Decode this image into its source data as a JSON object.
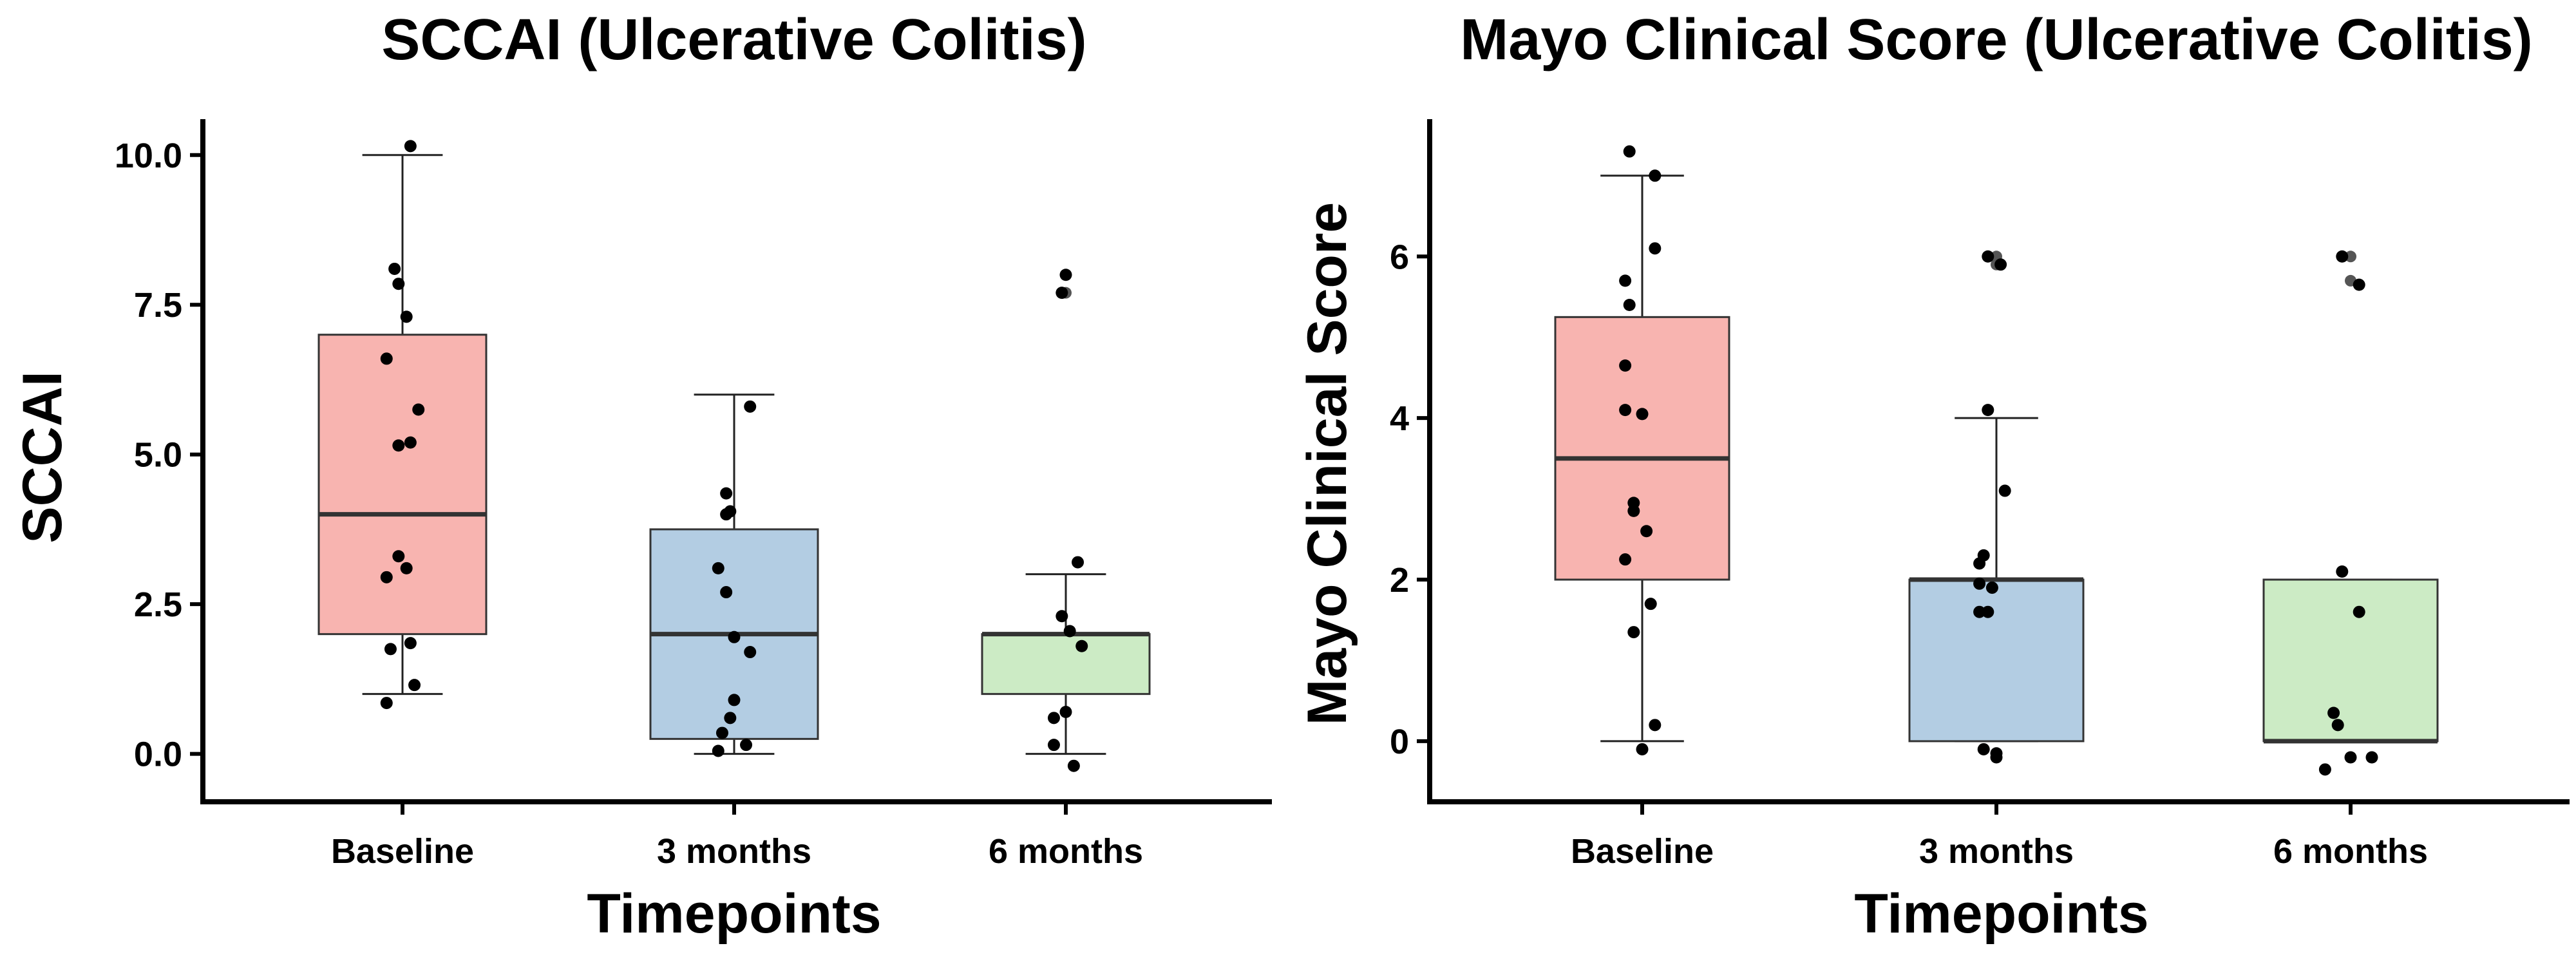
{
  "chart_data": [
    {
      "type": "box",
      "title": "SCCAI (Ulcerative Colitis)",
      "xlabel": "Timepoints",
      "ylabel": "SCCAI",
      "ylim": [
        -0.8,
        10.6
      ],
      "yticks": [
        0.0,
        2.5,
        5.0,
        7.5,
        10.0
      ],
      "ytick_labels": [
        "0.0",
        "2.5",
        "5.0",
        "7.5",
        "10.0"
      ],
      "categories": [
        "Baseline",
        "3 months",
        "6 months"
      ],
      "fill_colors": [
        "#F8B4B0",
        "#B3CDE3",
        "#CCEBC5"
      ],
      "boxes": [
        {
          "category": "Baseline",
          "whisker_low": 1.0,
          "q1": 2.0,
          "median": 4.0,
          "q3": 7.0,
          "whisker_high": 10.0,
          "outliers": []
        },
        {
          "category": "3 months",
          "whisker_low": 0.0,
          "q1": 0.25,
          "median": 2.0,
          "q3": 3.75,
          "whisker_high": 6.0,
          "outliers": []
        },
        {
          "category": "6 months",
          "whisker_low": 0.0,
          "q1": 1.0,
          "median": 2.0,
          "q3": 2.0,
          "whisker_high": 3.0,
          "outliers": [
            7.7,
            8.0
          ]
        }
      ],
      "points": [
        {
          "category": "Baseline",
          "y": 10.15,
          "jitter": 0.02
        },
        {
          "category": "Baseline",
          "y": 8.1,
          "jitter": -0.02
        },
        {
          "category": "Baseline",
          "y": 7.85,
          "jitter": -0.01
        },
        {
          "category": "Baseline",
          "y": 7.3,
          "jitter": 0.01
        },
        {
          "category": "Baseline",
          "y": 6.6,
          "jitter": -0.04
        },
        {
          "category": "Baseline",
          "y": 5.75,
          "jitter": 0.04
        },
        {
          "category": "Baseline",
          "y": 5.2,
          "jitter": 0.02
        },
        {
          "category": "Baseline",
          "y": 5.15,
          "jitter": -0.01
        },
        {
          "category": "Baseline",
          "y": 3.3,
          "jitter": -0.01
        },
        {
          "category": "Baseline",
          "y": 3.1,
          "jitter": 0.01
        },
        {
          "category": "Baseline",
          "y": 2.95,
          "jitter": -0.04
        },
        {
          "category": "Baseline",
          "y": 1.85,
          "jitter": 0.02
        },
        {
          "category": "Baseline",
          "y": 1.75,
          "jitter": -0.03
        },
        {
          "category": "Baseline",
          "y": 1.15,
          "jitter": 0.03
        },
        {
          "category": "Baseline",
          "y": 0.85,
          "jitter": -0.04
        },
        {
          "category": "3 months",
          "y": 5.8,
          "jitter": 0.04
        },
        {
          "category": "3 months",
          "y": 4.35,
          "jitter": -0.02
        },
        {
          "category": "3 months",
          "y": 4.05,
          "jitter": -0.01
        },
        {
          "category": "3 months",
          "y": 4.0,
          "jitter": -0.02
        },
        {
          "category": "3 months",
          "y": 3.1,
          "jitter": -0.04
        },
        {
          "category": "3 months",
          "y": 2.7,
          "jitter": -0.02
        },
        {
          "category": "3 months",
          "y": 1.95,
          "jitter": 0.0
        },
        {
          "category": "3 months",
          "y": 1.7,
          "jitter": 0.04
        },
        {
          "category": "3 months",
          "y": 0.9,
          "jitter": 0.0
        },
        {
          "category": "3 months",
          "y": 0.6,
          "jitter": -0.01
        },
        {
          "category": "3 months",
          "y": 0.35,
          "jitter": -0.03
        },
        {
          "category": "3 months",
          "y": 0.15,
          "jitter": 0.03
        },
        {
          "category": "3 months",
          "y": 0.05,
          "jitter": -0.04
        },
        {
          "category": "6 months",
          "y": 8.0,
          "jitter": 0.0
        },
        {
          "category": "6 months",
          "y": 7.7,
          "jitter": -0.01
        },
        {
          "category": "6 months",
          "y": 3.2,
          "jitter": 0.03
        },
        {
          "category": "6 months",
          "y": 2.3,
          "jitter": -0.01
        },
        {
          "category": "6 months",
          "y": 2.05,
          "jitter": 0.01
        },
        {
          "category": "6 months",
          "y": 1.8,
          "jitter": 0.04
        },
        {
          "category": "6 months",
          "y": 0.7,
          "jitter": 0.0
        },
        {
          "category": "6 months",
          "y": 0.6,
          "jitter": -0.03
        },
        {
          "category": "6 months",
          "y": 0.15,
          "jitter": -0.03
        },
        {
          "category": "6 months",
          "y": -0.2,
          "jitter": 0.02
        }
      ]
    },
    {
      "type": "box",
      "title": "Mayo Clinical Score (Ulcerative Colitis)",
      "xlabel": "Timepoints",
      "ylabel": "Mayo Clinical Score",
      "ylim": [
        -0.75,
        7.7
      ],
      "yticks": [
        0,
        2,
        4,
        6
      ],
      "ytick_labels": [
        "0",
        "2",
        "4",
        "6"
      ],
      "categories": [
        "Baseline",
        "3 months",
        "6 months"
      ],
      "fill_colors": [
        "#F8B4B0",
        "#B3CDE3",
        "#CCEBC5"
      ],
      "boxes": [
        {
          "category": "Baseline",
          "whisker_low": 0.0,
          "q1": 2.0,
          "median": 3.5,
          "q3": 5.25,
          "whisker_high": 7.0,
          "outliers": []
        },
        {
          "category": "3 months",
          "whisker_low": 0.0,
          "q1": 0.0,
          "median": 2.0,
          "q3": 2.0,
          "whisker_high": 4.0,
          "outliers": [
            5.9,
            6.0
          ]
        },
        {
          "category": "6 months",
          "whisker_low": 0.0,
          "q1": 0.0,
          "median": 0.0,
          "q3": 2.0,
          "whisker_high": 2.0,
          "outliers": [
            5.7,
            6.0
          ]
        }
      ],
      "points": [
        {
          "category": "Baseline",
          "y": 7.3,
          "jitter": -0.03
        },
        {
          "category": "Baseline",
          "y": 7.0,
          "jitter": 0.03
        },
        {
          "category": "Baseline",
          "y": 6.1,
          "jitter": 0.03
        },
        {
          "category": "Baseline",
          "y": 5.7,
          "jitter": -0.04
        },
        {
          "category": "Baseline",
          "y": 5.4,
          "jitter": -0.03
        },
        {
          "category": "Baseline",
          "y": 4.65,
          "jitter": -0.04
        },
        {
          "category": "Baseline",
          "y": 4.1,
          "jitter": -0.04
        },
        {
          "category": "Baseline",
          "y": 4.05,
          "jitter": 0.0
        },
        {
          "category": "Baseline",
          "y": 2.95,
          "jitter": -0.02
        },
        {
          "category": "Baseline",
          "y": 2.85,
          "jitter": -0.02
        },
        {
          "category": "Baseline",
          "y": 2.6,
          "jitter": 0.01
        },
        {
          "category": "Baseline",
          "y": 2.25,
          "jitter": -0.04
        },
        {
          "category": "Baseline",
          "y": 1.7,
          "jitter": 0.02
        },
        {
          "category": "Baseline",
          "y": 1.35,
          "jitter": -0.02
        },
        {
          "category": "Baseline",
          "y": 0.2,
          "jitter": 0.03
        },
        {
          "category": "Baseline",
          "y": -0.1,
          "jitter": 0.0
        },
        {
          "category": "3 months",
          "y": 6.0,
          "jitter": -0.02
        },
        {
          "category": "3 months",
          "y": 5.9,
          "jitter": 0.01
        },
        {
          "category": "3 months",
          "y": 4.1,
          "jitter": -0.02
        },
        {
          "category": "3 months",
          "y": 3.1,
          "jitter": 0.02
        },
        {
          "category": "3 months",
          "y": 2.3,
          "jitter": -0.03
        },
        {
          "category": "3 months",
          "y": 2.2,
          "jitter": -0.04
        },
        {
          "category": "3 months",
          "y": 1.95,
          "jitter": -0.04
        },
        {
          "category": "3 months",
          "y": 1.9,
          "jitter": -0.01
        },
        {
          "category": "3 months",
          "y": 1.6,
          "jitter": -0.04
        },
        {
          "category": "3 months",
          "y": 1.6,
          "jitter": -0.02
        },
        {
          "category": "3 months",
          "y": -0.1,
          "jitter": -0.03
        },
        {
          "category": "3 months",
          "y": -0.15,
          "jitter": 0.0
        },
        {
          "category": "3 months",
          "y": -0.2,
          "jitter": 0.0
        },
        {
          "category": "6 months",
          "y": 6.0,
          "jitter": -0.02
        },
        {
          "category": "6 months",
          "y": 5.65,
          "jitter": 0.02
        },
        {
          "category": "6 months",
          "y": 2.1,
          "jitter": -0.02
        },
        {
          "category": "6 months",
          "y": 1.6,
          "jitter": 0.02
        },
        {
          "category": "6 months",
          "y": 0.35,
          "jitter": -0.04
        },
        {
          "category": "6 months",
          "y": 0.2,
          "jitter": -0.03
        },
        {
          "category": "6 months",
          "y": -0.2,
          "jitter": 0.0
        },
        {
          "category": "6 months",
          "y": -0.2,
          "jitter": 0.05
        },
        {
          "category": "6 months",
          "y": -0.35,
          "jitter": -0.06
        }
      ]
    }
  ]
}
